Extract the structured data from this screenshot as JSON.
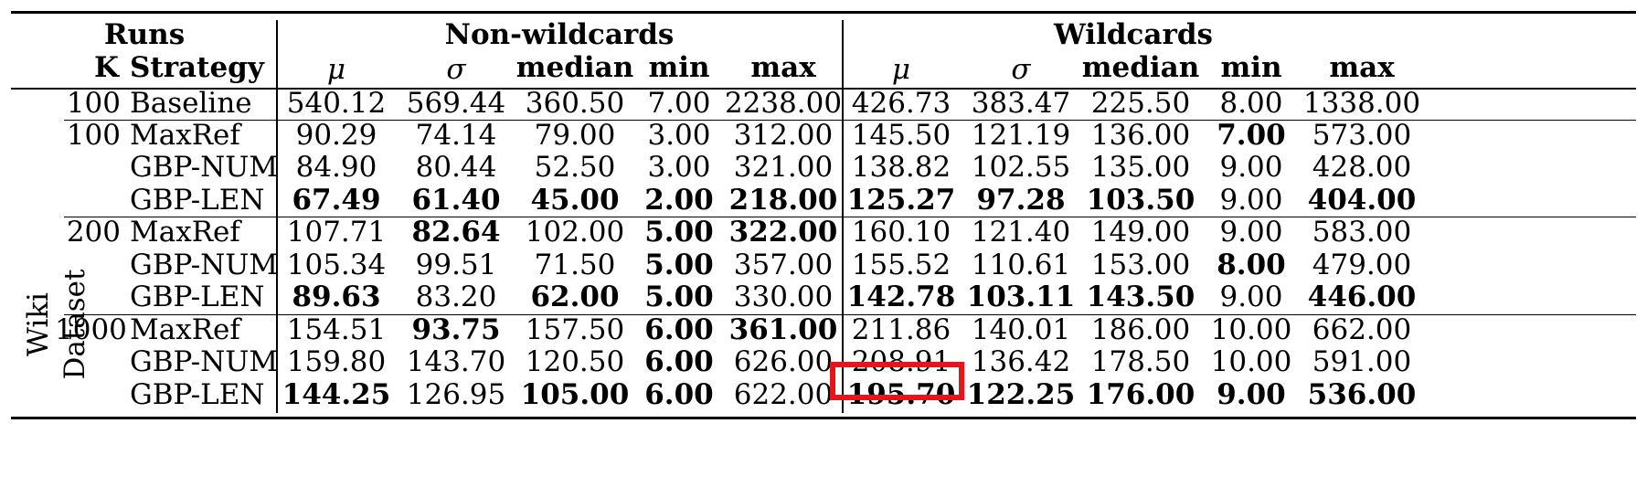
{
  "header": {
    "runs": "Runs",
    "k": "K",
    "strategy": "Strategy",
    "group_non_wildcards": "Non-wildcards",
    "group_wildcards": "Wildcards",
    "mu": "μ",
    "sigma": "σ",
    "median": "median",
    "min": "min",
    "max": "max"
  },
  "dataset_label": "Wiki Dataset",
  "highlight_color": "#e8141c",
  "rows": [
    {
      "k": "100",
      "strategy": "Baseline",
      "nw": [
        "540.12",
        "569.44",
        "360.50",
        "7.00",
        "2238.00"
      ],
      "nw_bold": [
        false,
        false,
        false,
        false,
        false
      ],
      "w": [
        "426.73",
        "383.47",
        "225.50",
        "8.00",
        "1338.00"
      ],
      "w_bold": [
        false,
        false,
        false,
        false,
        false
      ]
    },
    {
      "k": "100",
      "strategy": "MaxRef",
      "nw": [
        "90.29",
        "74.14",
        "79.00",
        "3.00",
        "312.00"
      ],
      "nw_bold": [
        false,
        false,
        false,
        false,
        false
      ],
      "w": [
        "145.50",
        "121.19",
        "136.00",
        "7.00",
        "573.00"
      ],
      "w_bold": [
        false,
        false,
        false,
        true,
        false
      ]
    },
    {
      "k": "",
      "strategy": "GBP-NUM",
      "nw": [
        "84.90",
        "80.44",
        "52.50",
        "3.00",
        "321.00"
      ],
      "nw_bold": [
        false,
        false,
        false,
        false,
        false
      ],
      "w": [
        "138.82",
        "102.55",
        "135.00",
        "9.00",
        "428.00"
      ],
      "w_bold": [
        false,
        false,
        false,
        false,
        false
      ]
    },
    {
      "k": "",
      "strategy": "GBP-LEN",
      "nw": [
        "67.49",
        "61.40",
        "45.00",
        "2.00",
        "218.00"
      ],
      "nw_bold": [
        true,
        true,
        true,
        true,
        true
      ],
      "w": [
        "125.27",
        "97.28",
        "103.50",
        "9.00",
        "404.00"
      ],
      "w_bold": [
        true,
        true,
        true,
        false,
        true
      ]
    },
    {
      "k": "200",
      "strategy": "MaxRef",
      "nw": [
        "107.71",
        "82.64",
        "102.00",
        "5.00",
        "322.00"
      ],
      "nw_bold": [
        false,
        true,
        false,
        true,
        true
      ],
      "w": [
        "160.10",
        "121.40",
        "149.00",
        "9.00",
        "583.00"
      ],
      "w_bold": [
        false,
        false,
        false,
        false,
        false
      ]
    },
    {
      "k": "",
      "strategy": "GBP-NUM",
      "nw": [
        "105.34",
        "99.51",
        "71.50",
        "5.00",
        "357.00"
      ],
      "nw_bold": [
        false,
        false,
        false,
        true,
        false
      ],
      "w": [
        "155.52",
        "110.61",
        "153.00",
        "8.00",
        "479.00"
      ],
      "w_bold": [
        false,
        false,
        false,
        true,
        false
      ]
    },
    {
      "k": "",
      "strategy": "GBP-LEN",
      "nw": [
        "89.63",
        "83.20",
        "62.00",
        "5.00",
        "330.00"
      ],
      "nw_bold": [
        true,
        false,
        true,
        true,
        false
      ],
      "w": [
        "142.78",
        "103.11",
        "143.50",
        "9.00",
        "446.00"
      ],
      "w_bold": [
        true,
        true,
        true,
        false,
        true
      ]
    },
    {
      "k": "1000",
      "strategy": "MaxRef",
      "nw": [
        "154.51",
        "93.75",
        "157.50",
        "6.00",
        "361.00"
      ],
      "nw_bold": [
        false,
        true,
        false,
        true,
        true
      ],
      "w": [
        "211.86",
        "140.01",
        "186.00",
        "10.00",
        "662.00"
      ],
      "w_bold": [
        false,
        false,
        false,
        false,
        false
      ]
    },
    {
      "k": "",
      "strategy": "GBP-NUM",
      "nw": [
        "159.80",
        "143.70",
        "120.50",
        "6.00",
        "626.00"
      ],
      "nw_bold": [
        false,
        false,
        false,
        true,
        false
      ],
      "w": [
        "208.91",
        "136.42",
        "178.50",
        "10.00",
        "591.00"
      ],
      "w_bold": [
        false,
        false,
        false,
        false,
        false
      ]
    },
    {
      "k": "",
      "strategy": "GBP-LEN",
      "nw": [
        "144.25",
        "126.95",
        "105.00",
        "6.00",
        "622.00"
      ],
      "nw_bold": [
        true,
        false,
        true,
        true,
        false
      ],
      "w": [
        "195.70",
        "122.25",
        "176.00",
        "9.00",
        "536.00"
      ],
      "w_bold": [
        true,
        true,
        true,
        true,
        true
      ]
    }
  ]
}
